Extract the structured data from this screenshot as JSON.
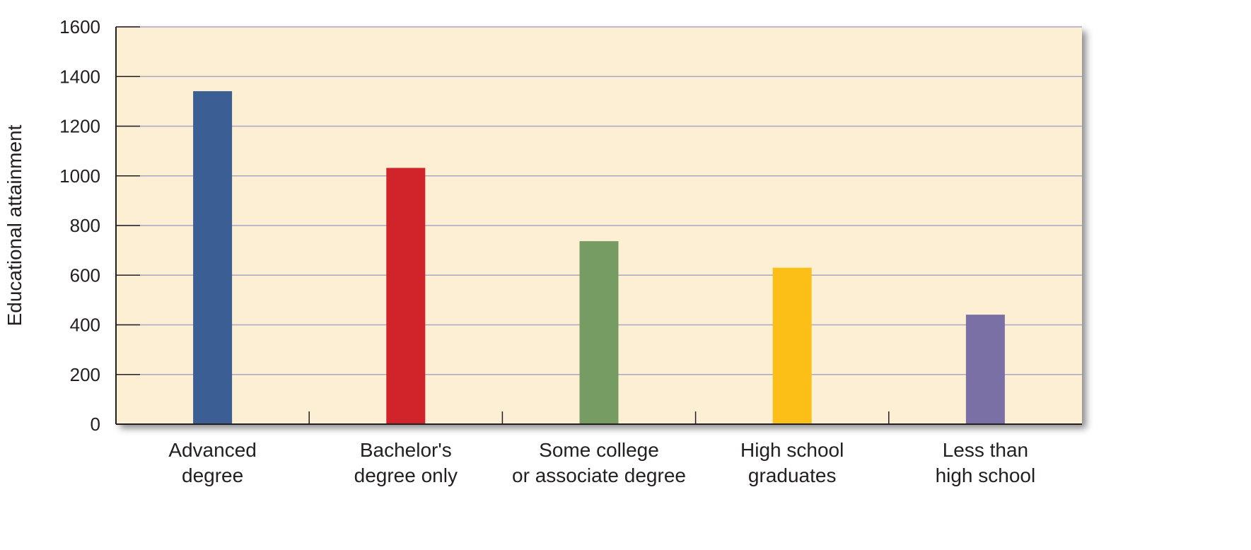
{
  "chart_data": {
    "type": "bar",
    "title": "",
    "xlabel": "",
    "ylabel": "Educational attainment",
    "ylim": [
      0,
      1600
    ],
    "yticks": [
      0,
      200,
      400,
      600,
      800,
      1000,
      1200,
      1400,
      1600
    ],
    "grid": "horizontal",
    "legend": "none",
    "categories": [
      [
        "Advanced",
        "degree"
      ],
      [
        "Bachelor's",
        "degree only"
      ],
      [
        "Some college",
        "or associate degree"
      ],
      [
        "High school",
        "graduates"
      ],
      [
        "Less than",
        "high school"
      ]
    ],
    "values": [
      1341,
      1032,
      737,
      630,
      441
    ],
    "colors": [
      "#3b5e95",
      "#d0232a",
      "#779c63",
      "#fbbf17",
      "#7b70a5"
    ],
    "plot_background": "#fdefd4",
    "gridline_color": "#a8a7c4"
  }
}
